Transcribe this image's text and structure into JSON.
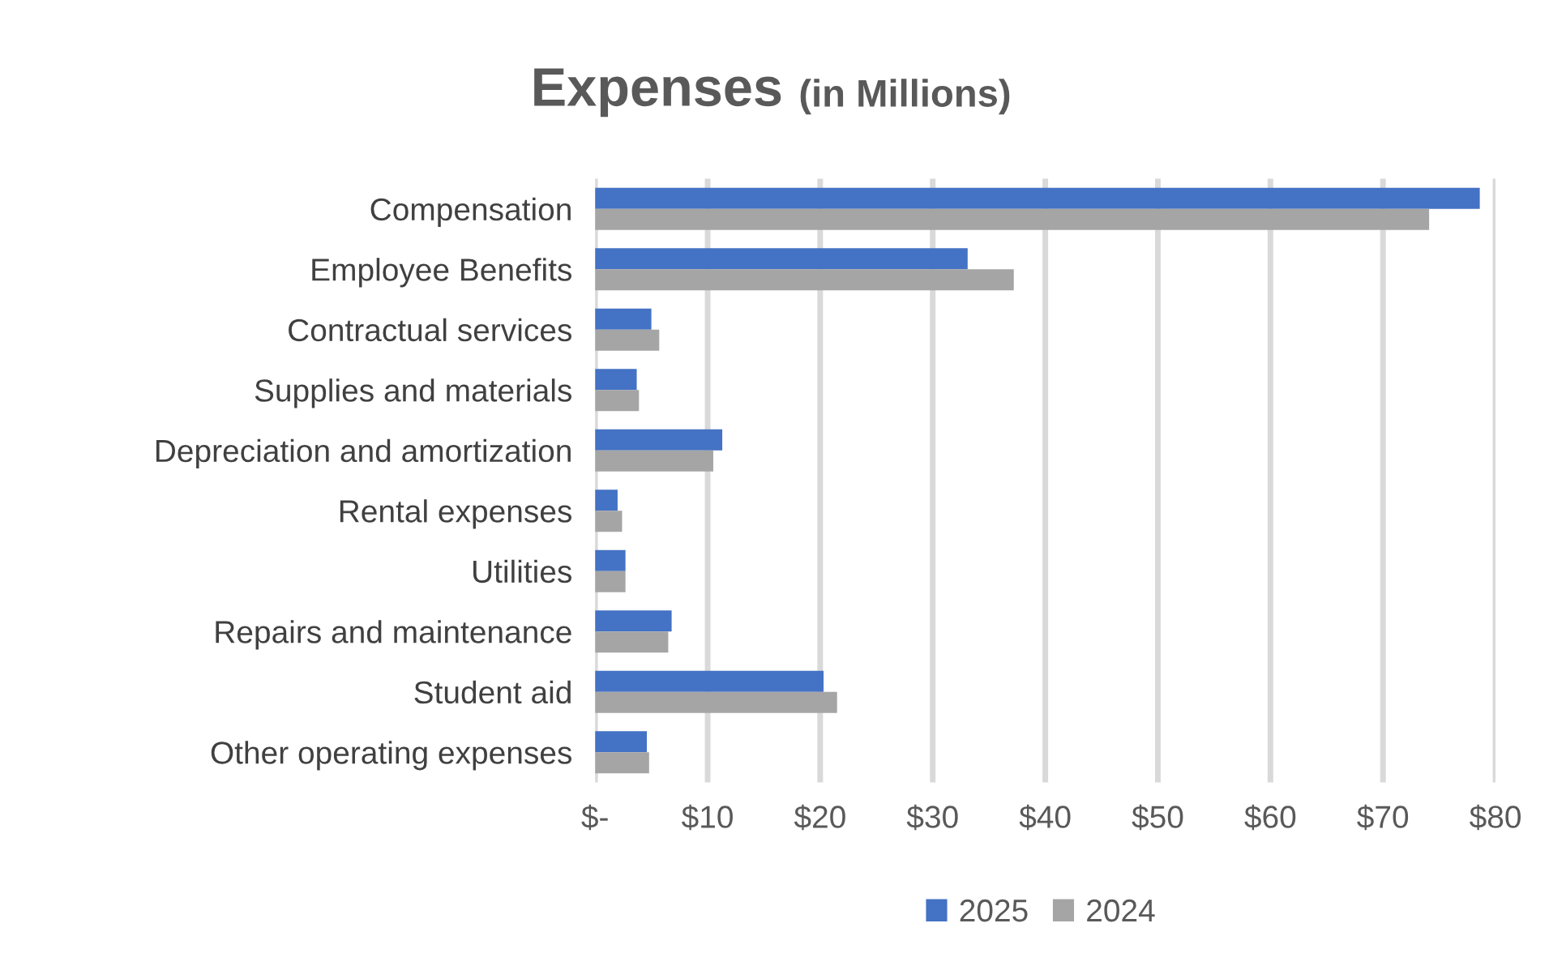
{
  "chart_data": {
    "type": "bar",
    "orientation": "horizontal",
    "title": "Expenses",
    "subtitle": "(in Millions)",
    "categories": [
      "Compensation",
      "Employee Benefits",
      "Contractual services",
      "Supplies and materials",
      "Depreciation and amortization",
      "Rental expenses",
      "Utilities",
      "Repairs and maintenance",
      "Student aid",
      "Other operating expenses"
    ],
    "series": [
      {
        "name": "2025",
        "color": "#4472c4",
        "values": [
          78.6,
          33.1,
          5.0,
          3.7,
          11.3,
          2.0,
          2.7,
          6.8,
          20.3,
          4.6
        ]
      },
      {
        "name": "2024",
        "color": "#a5a5a5",
        "values": [
          74.1,
          37.2,
          5.7,
          3.9,
          10.5,
          2.4,
          2.7,
          6.5,
          21.5,
          4.8
        ]
      }
    ],
    "xlim": [
      0,
      80
    ],
    "xticks": [
      {
        "value": 0,
        "label": "$-"
      },
      {
        "value": 10,
        "label": "$10"
      },
      {
        "value": 20,
        "label": "$20"
      },
      {
        "value": 30,
        "label": "$30"
      },
      {
        "value": 40,
        "label": "$40"
      },
      {
        "value": 50,
        "label": "$50"
      },
      {
        "value": 60,
        "label": "$60"
      },
      {
        "value": 70,
        "label": "$70"
      },
      {
        "value": 80,
        "label": "$80"
      }
    ],
    "grid": "x",
    "legend": "bottom"
  }
}
